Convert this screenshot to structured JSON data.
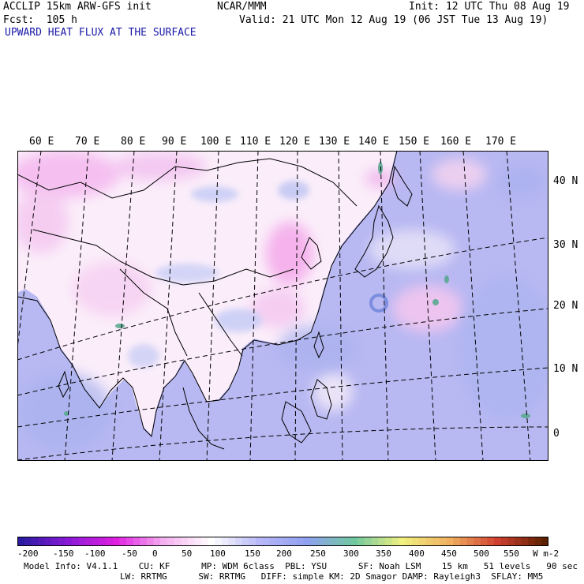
{
  "header": {
    "model": "ACCLIP 15km ARW-GFS init",
    "forecast": "Fcst:  105 h",
    "center": "NCAR/MMM",
    "init": "Init: 12 UTC Thu 08 Aug 19",
    "valid": "Valid: 21 UTC Mon 12 Aug 19 (06 JST Tue 13 Aug 19)",
    "field": "UPWARD HEAT FLUX AT THE SURFACE"
  },
  "lon_labels": [
    "60 E",
    "70 E",
    "80 E",
    "90 E",
    "100 E",
    "110 E",
    "120 E",
    "130 E",
    "140 E",
    "150 E",
    "160 E",
    "170 E"
  ],
  "lat_labels": [
    "40 N",
    "30 N",
    "20 N",
    "10 N",
    "0"
  ],
  "colorbar": {
    "labels": [
      "-200",
      "-150",
      "-100",
      "-50",
      "0",
      "50",
      "100",
      "150",
      "200",
      "250",
      "300",
      "350",
      "400",
      "450",
      "500",
      "550"
    ],
    "units": "W m-2",
    "colors": {
      "neg_deep": "#2a1aa0",
      "neg_purple": "#8a1ad8",
      "neg_magenta": "#e020e0",
      "neg_pink": "#f5b0f0",
      "near_zero": "#ffffff",
      "pos_low": "#b8b8f8",
      "pos_blue": "#8fa0f0",
      "pos_green": "#70c8a0",
      "pos_yellow": "#f0f080",
      "pos_orange": "#f0b060",
      "pos_red": "#d04030",
      "pos_brown": "#5a2000"
    }
  },
  "footer": {
    "line1": "Model Info: V4.1.1    CU: KF      MP: WDM 6class  PBL: YSU      SF: Noah LSM    15 km   51 levels   90 sec",
    "line2": "LW: RRTMG      SW: RRTMG   DIFF: simple KM: 2D Smagor DAMP: Rayleigh3  SFLAY: MM5"
  }
}
